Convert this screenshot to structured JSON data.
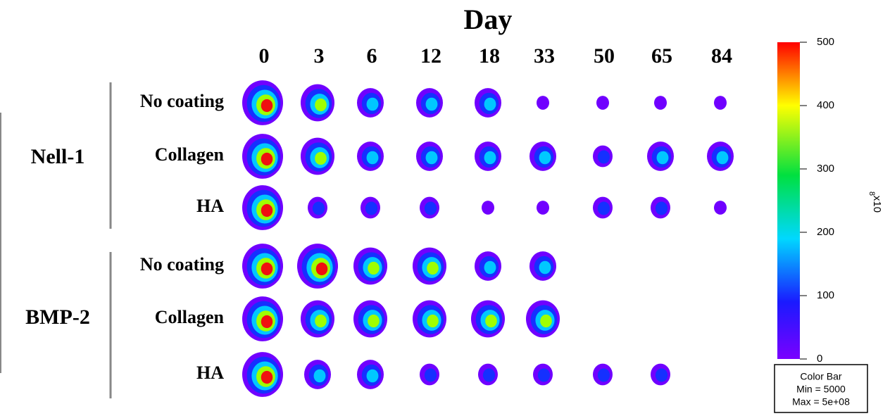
{
  "header": {
    "title": "Day"
  },
  "days": [
    "0",
    "3",
    "6",
    "12",
    "18",
    "33",
    "50",
    "65",
    "84"
  ],
  "groups": [
    {
      "label": "Nell-1",
      "rows": [
        "No coating",
        "Collagen",
        "HA"
      ]
    },
    {
      "label": "BMP-2",
      "rows": [
        "No coating",
        "Collagen",
        "HA"
      ]
    }
  ],
  "color_bar": {
    "ticks": [
      0,
      100,
      200,
      300,
      400,
      500
    ],
    "unit": "x10",
    "exponent": "8",
    "box": [
      "Color Bar",
      "Min = 5000",
      "Max = 5e+08"
    ]
  }
}
